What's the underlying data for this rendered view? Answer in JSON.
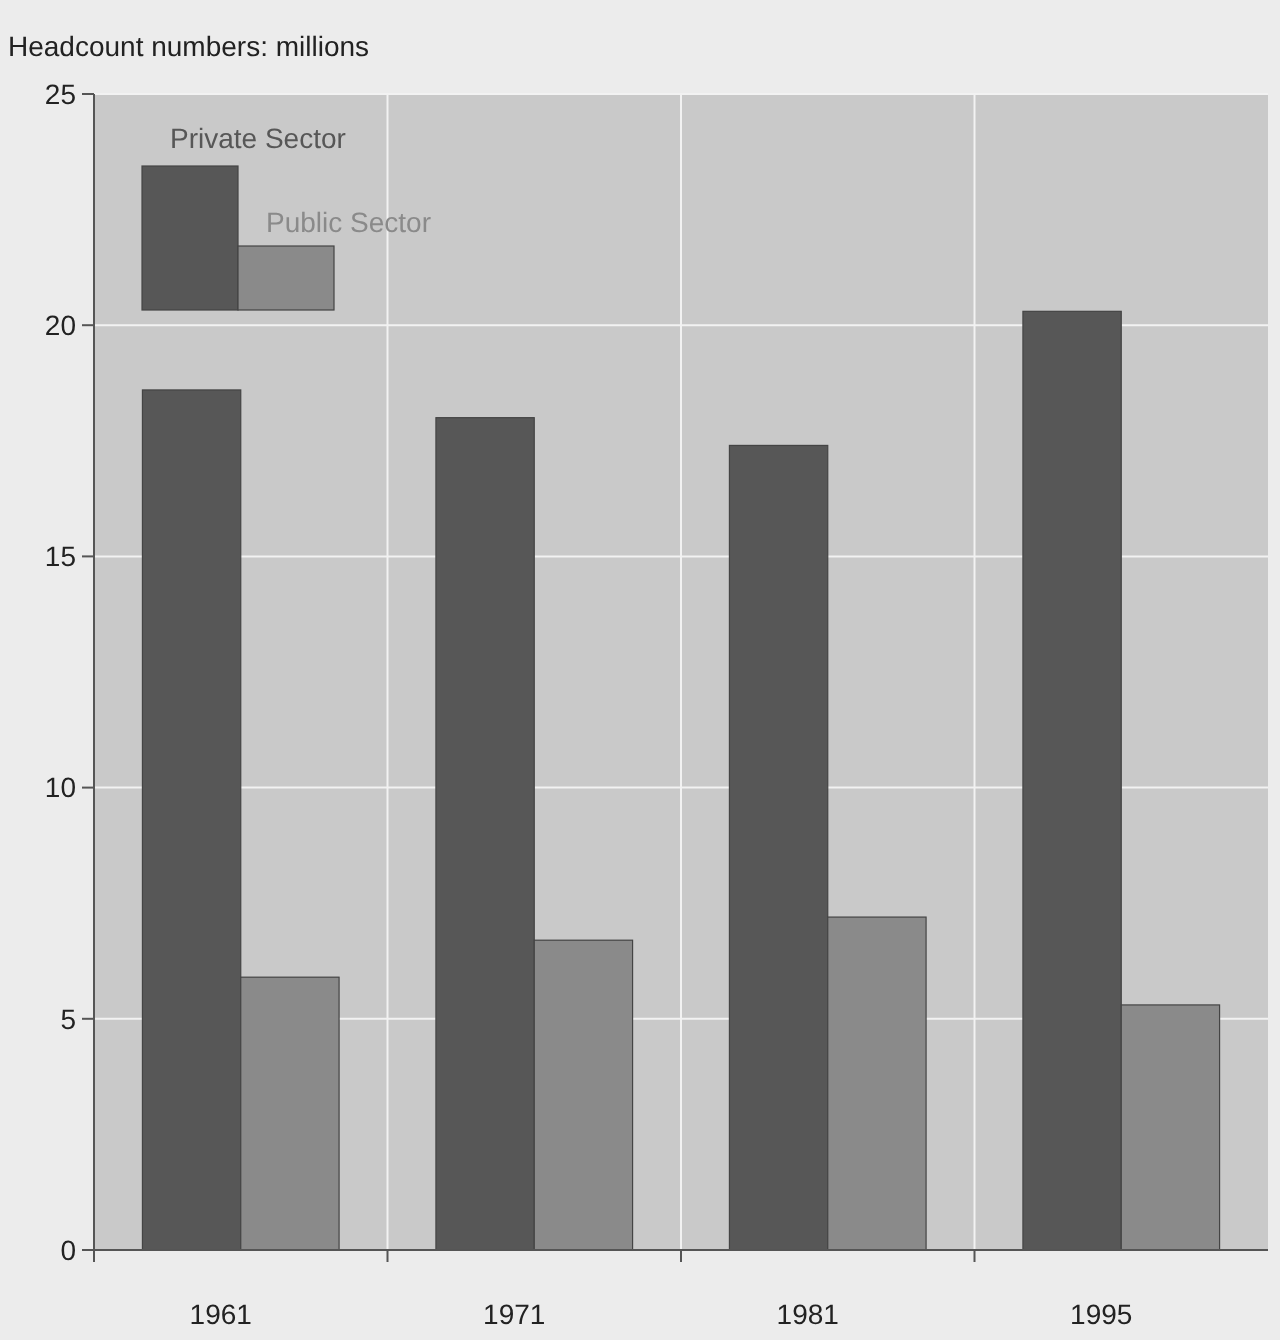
{
  "chart_data": {
    "type": "bar",
    "ylabel": "Headcount numbers: millions",
    "categories": [
      "1961",
      "1971",
      "1981",
      "1995"
    ],
    "series": [
      {
        "name": "Private Sector",
        "color": "#575757",
        "values": [
          18.6,
          18.0,
          17.4,
          20.3
        ]
      },
      {
        "name": "Public Sector",
        "color": "#8a8a8a",
        "values": [
          5.9,
          6.7,
          7.2,
          5.3
        ]
      }
    ],
    "ylim": [
      0,
      25
    ],
    "yticks": [
      0,
      5,
      10,
      15,
      20,
      25
    ],
    "grid": true,
    "legend": "top left"
  }
}
